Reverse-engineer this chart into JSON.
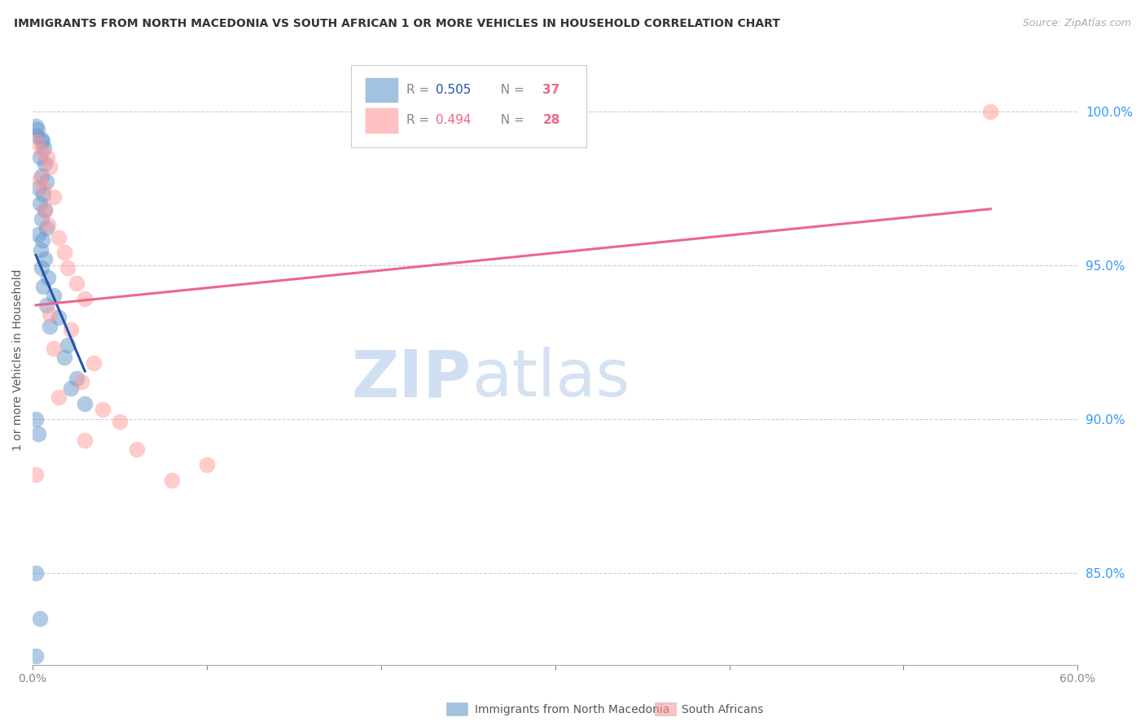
{
  "title": "IMMIGRANTS FROM NORTH MACEDONIA VS SOUTH AFRICAN 1 OR MORE VEHICLES IN HOUSEHOLD CORRELATION CHART",
  "source": "Source: ZipAtlas.com",
  "ylabel": "1 or more Vehicles in Household",
  "right_yticks": [
    85.0,
    90.0,
    95.0,
    100.0
  ],
  "xmin": 0.0,
  "xmax": 60.0,
  "ymin": 82.0,
  "ymax": 101.8,
  "legend_blue_r": "R = 0.505",
  "legend_blue_n": "37",
  "legend_pink_r": "R = 0.494",
  "legend_pink_n": "28",
  "blue_color": "#6699CC",
  "pink_color": "#FF9999",
  "blue_trend_color": "#2255AA",
  "pink_trend_color": "#EE6688",
  "watermark_zip": "ZIP",
  "watermark_atlas": "atlas",
  "blue_label": "Immigrants from North Macedonia",
  "pink_label": "South Africans",
  "blue_dots": [
    [
      0.18,
      99.5
    ],
    [
      0.28,
      99.4
    ],
    [
      0.22,
      99.2
    ],
    [
      0.5,
      99.1
    ],
    [
      0.55,
      99.0
    ],
    [
      0.65,
      98.8
    ],
    [
      0.4,
      98.5
    ],
    [
      0.7,
      98.3
    ],
    [
      0.5,
      97.9
    ],
    [
      0.8,
      97.7
    ],
    [
      0.3,
      97.5
    ],
    [
      0.6,
      97.3
    ],
    [
      0.4,
      97.0
    ],
    [
      0.7,
      96.8
    ],
    [
      0.5,
      96.5
    ],
    [
      0.8,
      96.2
    ],
    [
      0.3,
      96.0
    ],
    [
      0.55,
      95.8
    ],
    [
      0.45,
      95.5
    ],
    [
      0.7,
      95.2
    ],
    [
      0.5,
      94.9
    ],
    [
      0.9,
      94.6
    ],
    [
      0.6,
      94.3
    ],
    [
      1.2,
      94.0
    ],
    [
      0.8,
      93.7
    ],
    [
      1.5,
      93.3
    ],
    [
      1.0,
      93.0
    ],
    [
      2.0,
      92.4
    ],
    [
      1.8,
      92.0
    ],
    [
      2.5,
      91.3
    ],
    [
      2.2,
      91.0
    ],
    [
      3.0,
      90.5
    ],
    [
      0.2,
      90.0
    ],
    [
      0.3,
      89.5
    ],
    [
      0.2,
      85.0
    ],
    [
      0.4,
      83.5
    ],
    [
      0.18,
      82.3
    ]
  ],
  "pink_dots": [
    [
      0.25,
      99.0
    ],
    [
      0.5,
      98.7
    ],
    [
      0.85,
      98.5
    ],
    [
      1.0,
      98.2
    ],
    [
      0.4,
      97.8
    ],
    [
      0.6,
      97.5
    ],
    [
      1.2,
      97.2
    ],
    [
      0.7,
      96.8
    ],
    [
      0.9,
      96.3
    ],
    [
      1.5,
      95.9
    ],
    [
      1.8,
      95.4
    ],
    [
      2.0,
      94.9
    ],
    [
      2.5,
      94.4
    ],
    [
      3.0,
      93.9
    ],
    [
      1.0,
      93.4
    ],
    [
      2.2,
      92.9
    ],
    [
      1.2,
      92.3
    ],
    [
      3.5,
      91.8
    ],
    [
      2.8,
      91.2
    ],
    [
      1.5,
      90.7
    ],
    [
      4.0,
      90.3
    ],
    [
      5.0,
      89.9
    ],
    [
      3.0,
      89.3
    ],
    [
      6.0,
      89.0
    ],
    [
      10.0,
      88.5
    ],
    [
      8.0,
      88.0
    ],
    [
      0.18,
      88.2
    ],
    [
      55.0,
      100.0
    ]
  ]
}
